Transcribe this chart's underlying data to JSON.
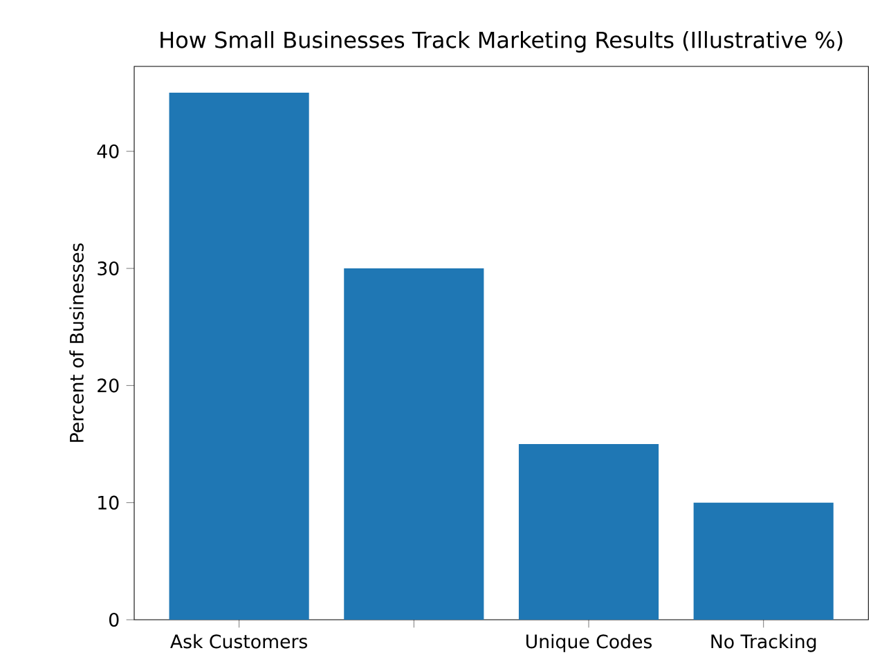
{
  "chart_data": {
    "type": "bar",
    "title": "How Small Businesses Track Marketing Results (Illustrative %)",
    "ylabel": "Percent of Businesses",
    "categories": [
      "Ask Customers",
      null,
      "Unique Codes",
      "No Tracking"
    ],
    "values": [
      45,
      30,
      15,
      10
    ],
    "color": "#1f77b4",
    "ylim": [
      0,
      47.25
    ],
    "yticks": [
      0,
      10,
      20,
      30,
      40
    ],
    "grid": false
  }
}
